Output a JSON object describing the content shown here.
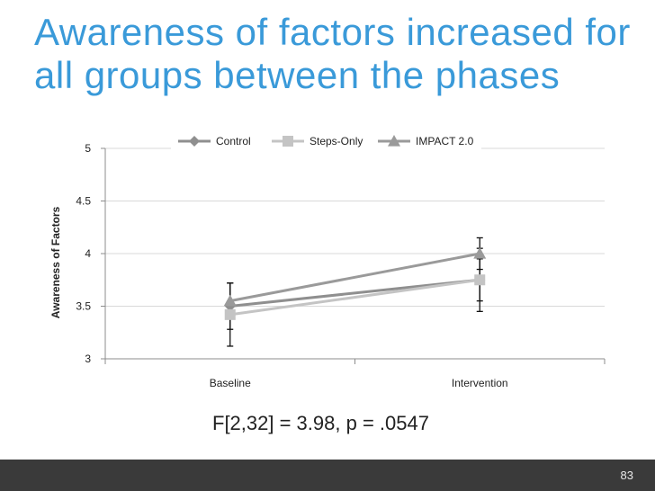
{
  "slide": {
    "title_line1": "Awareness of factors increased for",
    "title_line2": "all groups between the phases",
    "stat_text": "F[2,32] = 3.98, p = .0547",
    "page_number": "83"
  },
  "colors": {
    "title": "#3a9ad9",
    "control": "#8f8f8f",
    "steps_only": "#c4c4c4",
    "impact": "#9a9a9a",
    "footer": "#3a3a3a"
  },
  "chart_data": {
    "type": "line",
    "title": "",
    "xlabel": "",
    "ylabel": "Awareness of Factors",
    "categories": [
      "Baseline",
      "Intervention"
    ],
    "ylim": [
      3,
      5
    ],
    "yticks": [
      3,
      3.5,
      4,
      4.5,
      5
    ],
    "ytick_labels": [
      "3",
      "3.5",
      "4",
      "4.5",
      "5"
    ],
    "grid": true,
    "legend_position": "top",
    "series": [
      {
        "name": "Control",
        "marker": "diamond",
        "values": [
          3.5,
          3.75
        ],
        "err": [
          0.22,
          0.2
        ]
      },
      {
        "name": "Steps-Only",
        "marker": "square",
        "values": [
          3.42,
          3.75
        ],
        "err": [
          0.3,
          0.3
        ]
      },
      {
        "name": "IMPACT 2.0",
        "marker": "triangle",
        "values": [
          3.55,
          4.0
        ],
        "err": [
          0.17,
          0.15
        ]
      }
    ]
  }
}
